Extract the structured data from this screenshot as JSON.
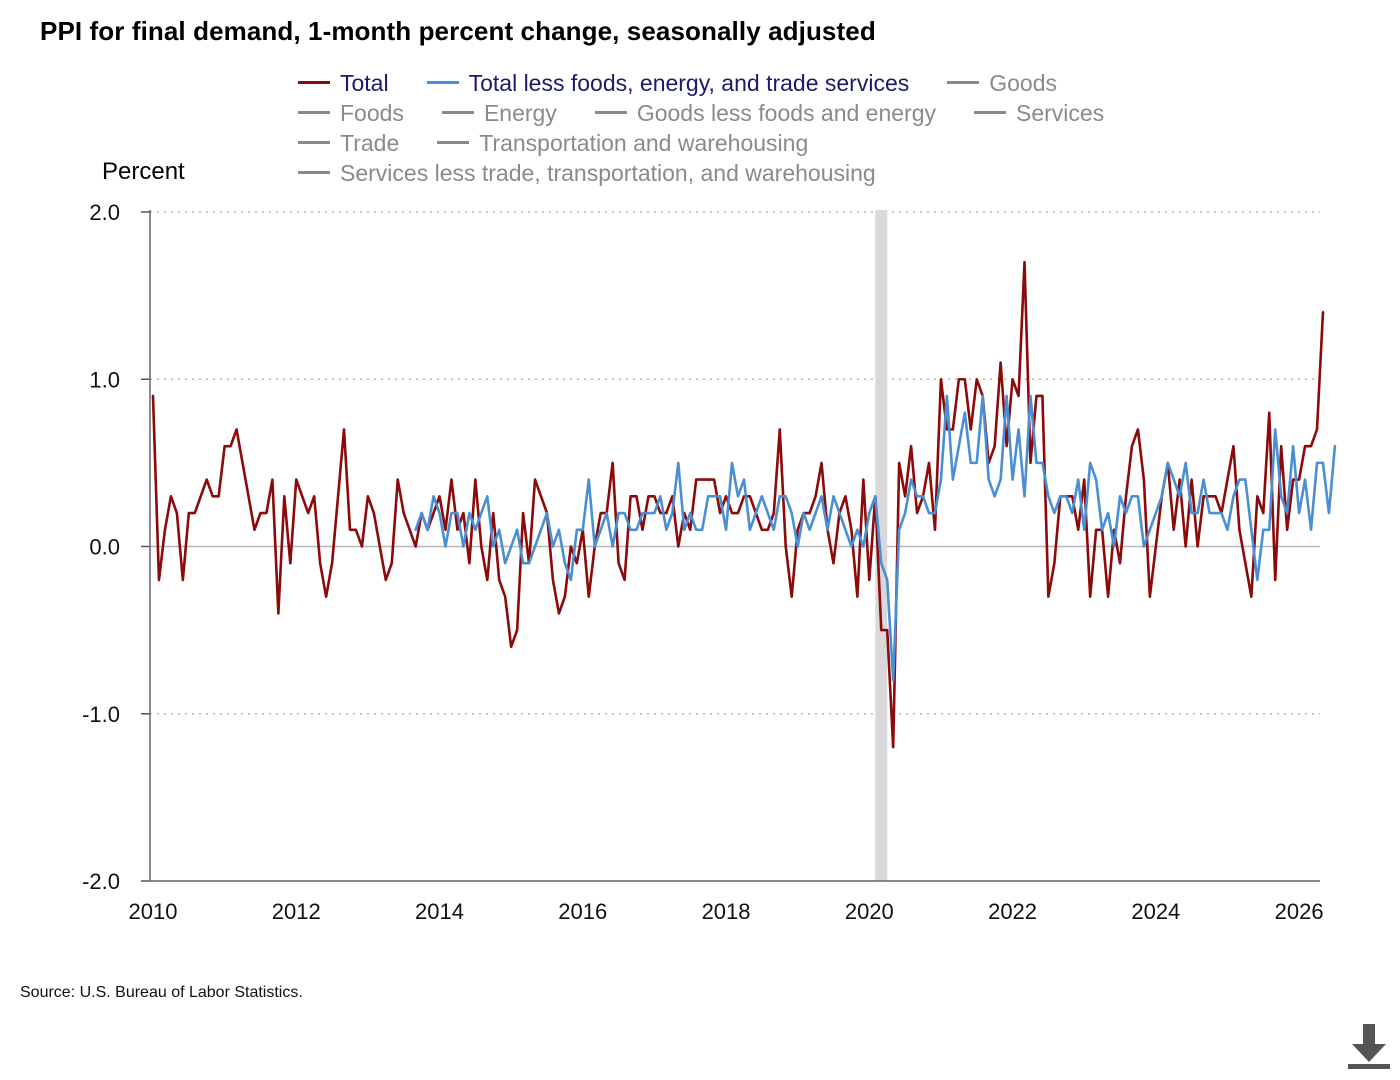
{
  "title": "PPI for final demand, 1-month percent change, seasonally adjusted",
  "source": "Source: U.S. Bureau of Labor Statistics.",
  "legend": [
    [
      {
        "label": "Total",
        "color": "#8b0a0a",
        "active": true
      },
      {
        "label": "Total less foods, energy, and trade services",
        "color": "#4a8fd4",
        "active": true
      },
      {
        "label": "Goods",
        "color": "#8a8a8a",
        "active": false
      }
    ],
    [
      {
        "label": "Foods",
        "color": "#8a8a8a",
        "active": false
      },
      {
        "label": "Energy",
        "color": "#8a8a8a",
        "active": false
      },
      {
        "label": "Goods less foods and energy",
        "color": "#8a8a8a",
        "active": false
      },
      {
        "label": "Services",
        "color": "#8a8a8a",
        "active": false
      }
    ],
    [
      {
        "label": "Trade",
        "color": "#8a8a8a",
        "active": false
      },
      {
        "label": "Transportation and warehousing",
        "color": "#8a8a8a",
        "active": false
      }
    ],
    [
      {
        "label": "Services less trade, transportation, and warehousing",
        "color": "#8a8a8a",
        "active": false
      }
    ]
  ],
  "download_icon": "download-icon",
  "chart_data": {
    "type": "line",
    "title": "PPI for final demand, 1-month percent change, seasonally adjusted",
    "ylabel": "Percent",
    "xlabel": "",
    "ylim": [
      -2.0,
      2.0
    ],
    "xlim": [
      "2010-01",
      "2026-04"
    ],
    "x_ticks": [
      "2010",
      "2012",
      "2014",
      "2016",
      "2018",
      "2020",
      "2022",
      "2024",
      "2026"
    ],
    "y_ticks": [
      "2.0",
      "1.0",
      "0.0",
      "-1.0",
      "-2.0"
    ],
    "grid": "horizontal dotted",
    "zero_line": true,
    "shaded_period": [
      "2020-02",
      "2020-04"
    ],
    "shaded_color": "#d9d9d9",
    "series": [
      {
        "name": "Total",
        "color": "#8b0a0a",
        "start": "2010-01",
        "values": [
          0.9,
          -0.2,
          0.1,
          0.3,
          0.2,
          -0.2,
          0.2,
          0.2,
          0.3,
          0.4,
          0.3,
          0.3,
          0.6,
          0.6,
          0.7,
          0.5,
          0.3,
          0.1,
          0.2,
          0.2,
          0.4,
          -0.4,
          0.3,
          -0.1,
          0.4,
          0.3,
          0.2,
          0.3,
          -0.1,
          -0.3,
          -0.1,
          0.3,
          0.7,
          0.1,
          0.1,
          0.0,
          0.3,
          0.2,
          0.0,
          -0.2,
          -0.1,
          0.4,
          0.2,
          0.1,
          0.0,
          0.2,
          0.1,
          0.2,
          0.3,
          0.1,
          0.4,
          0.1,
          0.2,
          -0.1,
          0.4,
          0.0,
          -0.2,
          0.2,
          -0.2,
          -0.3,
          -0.6,
          -0.5,
          0.2,
          -0.1,
          0.4,
          0.3,
          0.2,
          -0.2,
          -0.4,
          -0.3,
          0.0,
          -0.1,
          0.1,
          -0.3,
          0.0,
          0.2,
          0.2,
          0.5,
          -0.1,
          -0.2,
          0.3,
          0.3,
          0.1,
          0.3,
          0.3,
          0.2,
          0.2,
          0.3,
          0.0,
          0.2,
          0.1,
          0.4,
          0.4,
          0.4,
          0.4,
          0.2,
          0.3,
          0.2,
          0.2,
          0.3,
          0.3,
          0.2,
          0.1,
          0.1,
          0.2,
          0.7,
          0.0,
          -0.3,
          0.1,
          0.2,
          0.2,
          0.3,
          0.5,
          0.1,
          -0.1,
          0.2,
          0.3,
          0.1,
          -0.3,
          0.4,
          -0.2,
          0.3,
          -0.5,
          -0.5,
          -1.2,
          0.5,
          0.3,
          0.6,
          0.2,
          0.3,
          0.5,
          0.1,
          1.0,
          0.7,
          0.7,
          1.0,
          1.0,
          0.7,
          1.0,
          0.9,
          0.5,
          0.6,
          1.1,
          0.6,
          1.0,
          0.9,
          1.7,
          0.5,
          0.9,
          0.9,
          -0.3,
          -0.1,
          0.3,
          0.3,
          0.3,
          0.1,
          0.4,
          -0.3,
          0.1,
          0.1,
          -0.3,
          0.1,
          -0.1,
          0.3,
          0.6,
          0.7,
          0.4,
          -0.3,
          0.0,
          0.3,
          0.5,
          0.1,
          0.4,
          0.0,
          0.4,
          0.0,
          0.3,
          0.3,
          0.3,
          0.2,
          0.4,
          0.6,
          0.1,
          -0.1,
          -0.3,
          0.3,
          0.2,
          0.8,
          -0.2,
          0.6,
          0.1,
          0.4,
          0.4,
          0.6,
          0.6,
          0.7,
          1.4
        ]
      },
      {
        "name": "Total less foods, energy, and trade services",
        "color": "#4a8fd4",
        "start": "2013-09",
        "values": [
          0.1,
          0.2,
          0.1,
          0.3,
          0.2,
          0.0,
          0.2,
          0.2,
          0.0,
          0.2,
          0.1,
          0.2,
          0.3,
          0.0,
          0.1,
          -0.1,
          0.0,
          0.1,
          -0.1,
          -0.1,
          0.0,
          0.1,
          0.2,
          0.0,
          0.1,
          -0.1,
          -0.2,
          0.1,
          0.1,
          0.4,
          0.0,
          0.1,
          0.2,
          0.0,
          0.2,
          0.2,
          0.1,
          0.1,
          0.2,
          0.2,
          0.2,
          0.3,
          0.1,
          0.2,
          0.5,
          0.1,
          0.2,
          0.1,
          0.1,
          0.3,
          0.3,
          0.3,
          0.1,
          0.5,
          0.3,
          0.4,
          0.1,
          0.2,
          0.3,
          0.2,
          0.1,
          0.3,
          0.3,
          0.2,
          0.0,
          0.2,
          0.1,
          0.2,
          0.3,
          0.1,
          0.3,
          0.2,
          0.1,
          0.0,
          0.1,
          0.0,
          0.2,
          0.3,
          -0.1,
          -0.2,
          -0.8,
          0.1,
          0.2,
          0.4,
          0.3,
          0.3,
          0.2,
          0.2,
          0.4,
          0.9,
          0.4,
          0.6,
          0.8,
          0.5,
          0.5,
          0.9,
          0.4,
          0.3,
          0.4,
          0.9,
          0.4,
          0.7,
          0.3,
          0.9,
          0.5,
          0.5,
          0.3,
          0.2,
          0.3,
          0.3,
          0.2,
          0.4,
          0.1,
          0.5,
          0.4,
          0.1,
          0.2,
          0.0,
          0.3,
          0.2,
          0.3,
          0.3,
          0.0,
          0.1,
          0.2,
          0.3,
          0.5,
          0.4,
          0.3,
          0.5,
          0.2,
          0.2,
          0.4,
          0.2,
          0.2,
          0.2,
          0.1,
          0.3,
          0.4,
          0.4,
          0.1,
          -0.2,
          0.1,
          0.1,
          0.7,
          0.3,
          0.2,
          0.6,
          0.2,
          0.4,
          0.1,
          0.5,
          0.5,
          0.2,
          0.6
        ]
      }
    ]
  }
}
